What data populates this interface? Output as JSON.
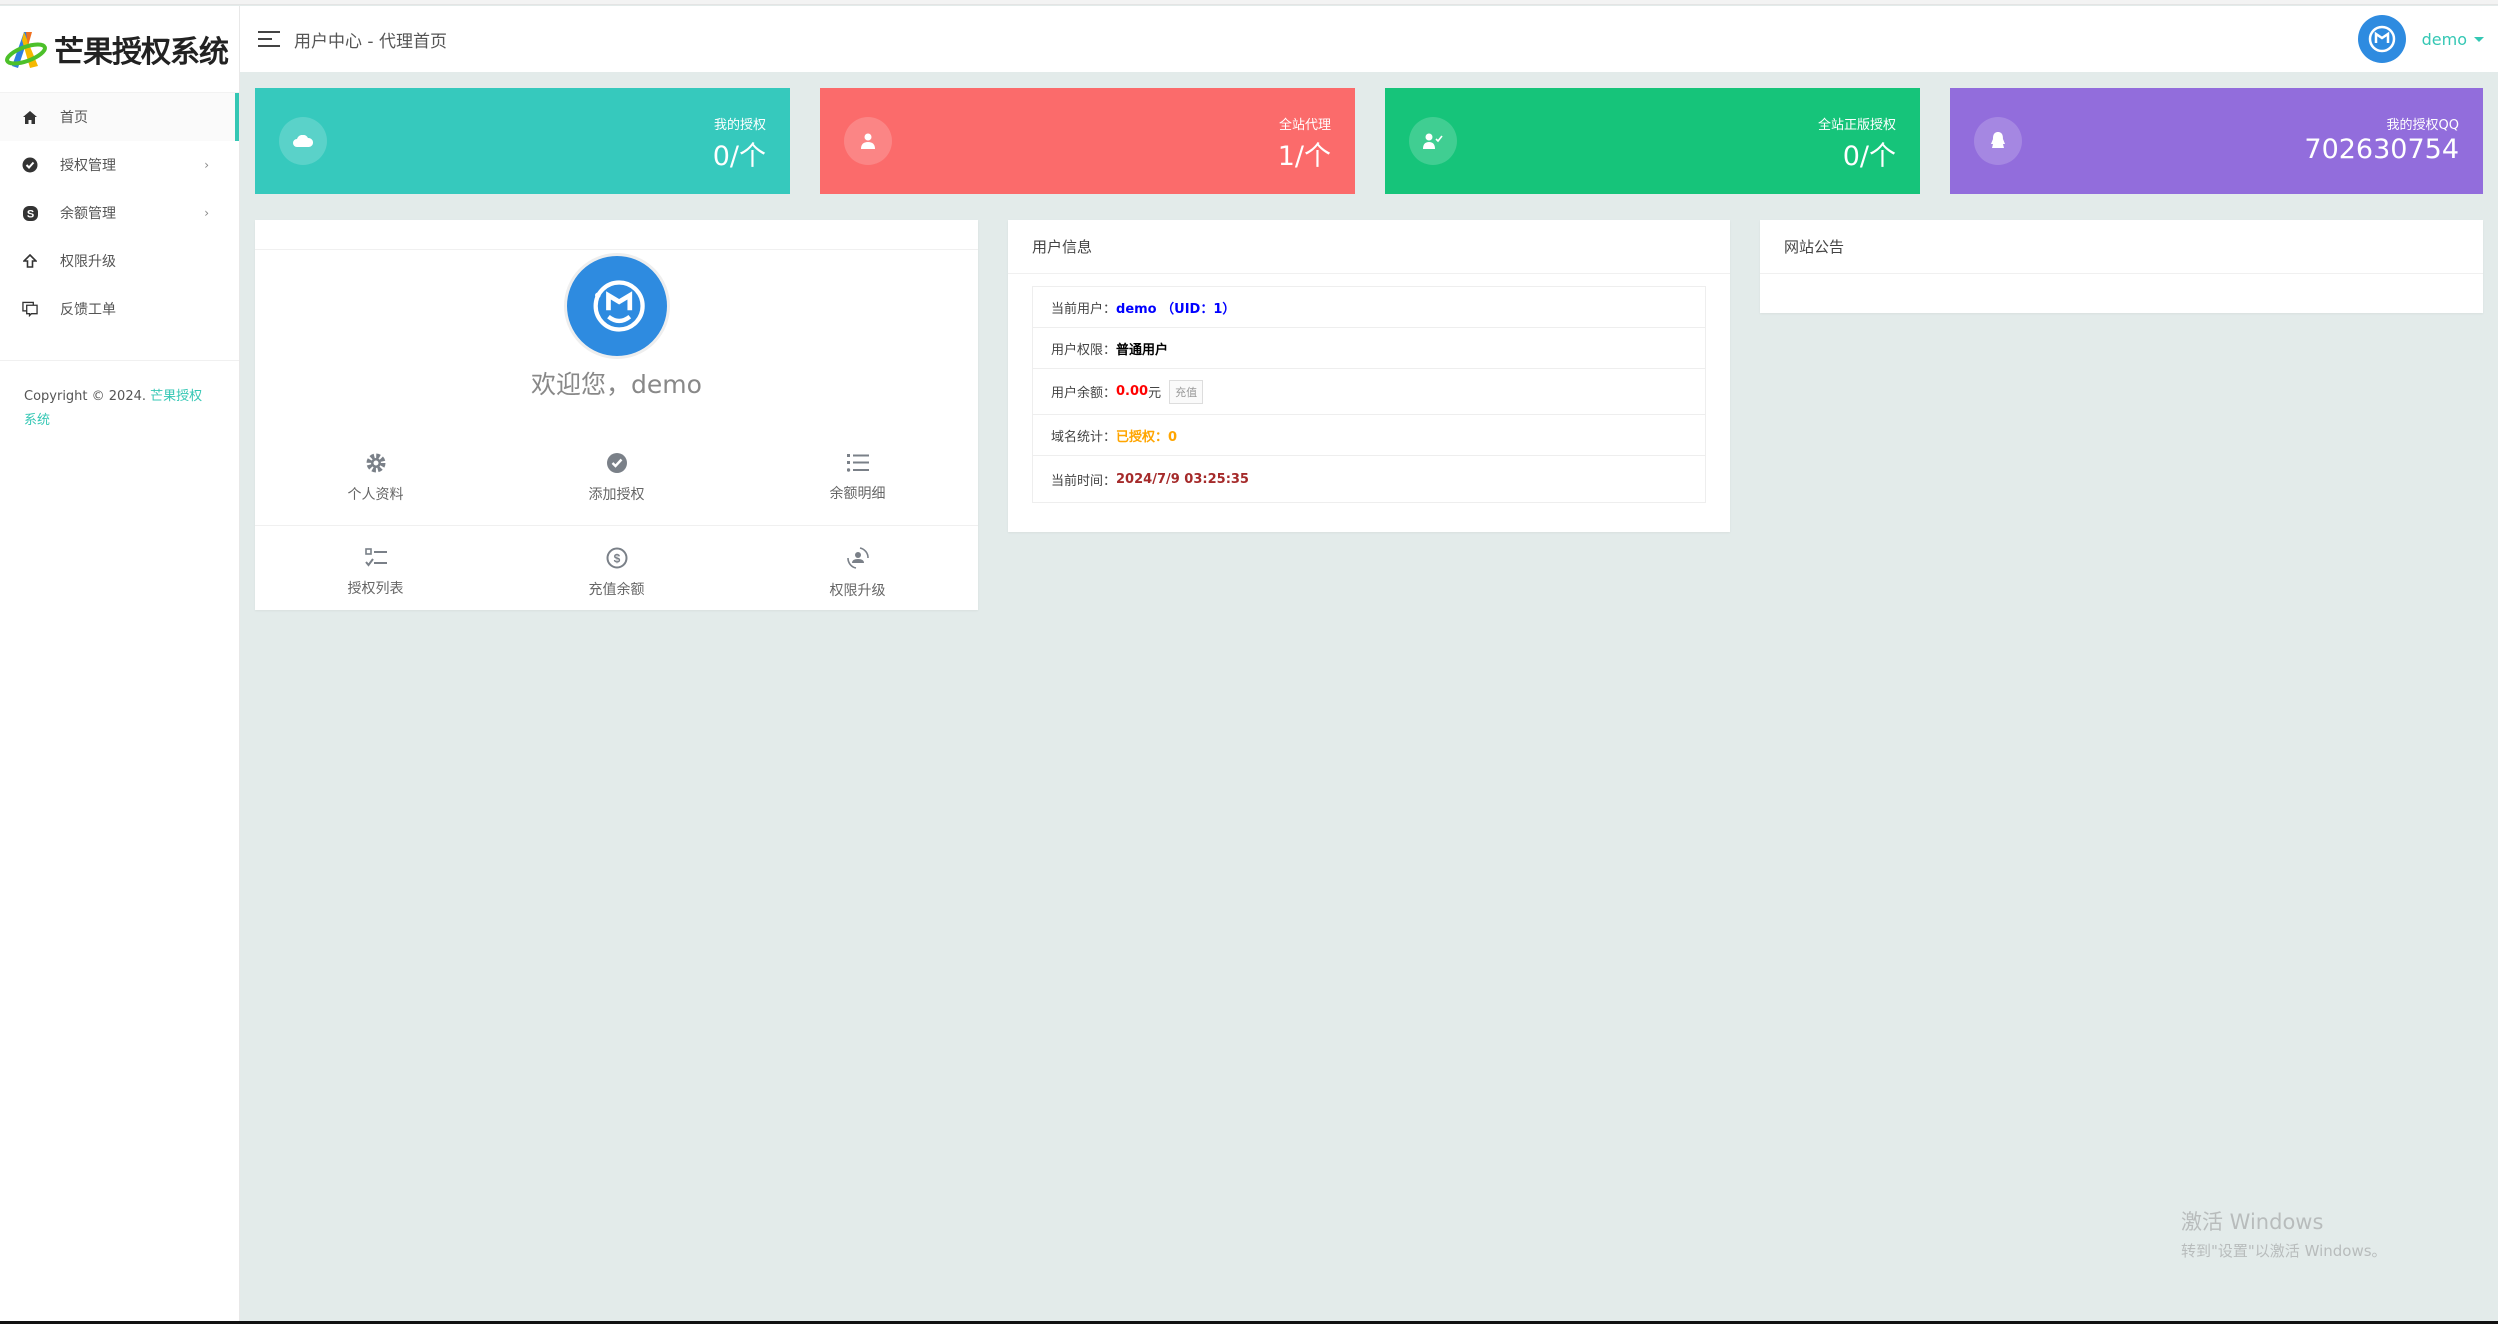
{
  "app": {
    "title": "芒果授权系统"
  },
  "header": {
    "breadcrumb": "用户中心 - 代理首页",
    "username": "demo"
  },
  "sidebar": {
    "items": [
      {
        "label": "首页",
        "icon": "home-icon",
        "active": true
      },
      {
        "label": "授权管理",
        "icon": "badge-check-icon",
        "has_children": true
      },
      {
        "label": "余额管理",
        "icon": "skype-icon",
        "has_children": true
      },
      {
        "label": "权限升级",
        "icon": "arrow-up-icon"
      },
      {
        "label": "反馈工单",
        "icon": "comments-icon"
      }
    ],
    "copyright_prefix": "Copyright © 2024.",
    "copyright_link": "芒果授权系统",
    "arrow": "›"
  },
  "stats": [
    {
      "label": "我的授权",
      "value": "0/个",
      "color": "#36c9bd",
      "icon": "cloud-icon"
    },
    {
      "label": "全站代理",
      "value": "1/个",
      "color": "#fb6b6b",
      "icon": "user-icon"
    },
    {
      "label": "全站正版授权",
      "value": "0/个",
      "color": "#16c47a",
      "icon": "user-check-icon"
    },
    {
      "label": "我的授权QQ",
      "value": "702630754",
      "color": "#926ddc",
      "icon": "qq-icon"
    }
  ],
  "profile": {
    "welcome": "欢迎您，demo",
    "actions": [
      "个人资料",
      "添加授权",
      "余额明细",
      "授权列表",
      "充值余额",
      "权限升级"
    ]
  },
  "user_info": {
    "title": "用户信息",
    "current_user_label": "当前用户：",
    "current_user_value": "demo （UID：1）",
    "role_label": "用户权限：",
    "role_value": "普通用户",
    "balance_label": "用户余额：",
    "balance_value": "0.00",
    "balance_unit": " 元",
    "recharge": "充值",
    "domain_label": "域名统计：",
    "domain_value": "已授权：0",
    "time_label": "当前时间：",
    "time_value": "2024/7/9 03:25:35"
  },
  "notice": {
    "title": "网站公告"
  },
  "watermark": {
    "line1": "激活 Windows",
    "line2": "转到\"设置\"以激活 Windows。"
  }
}
